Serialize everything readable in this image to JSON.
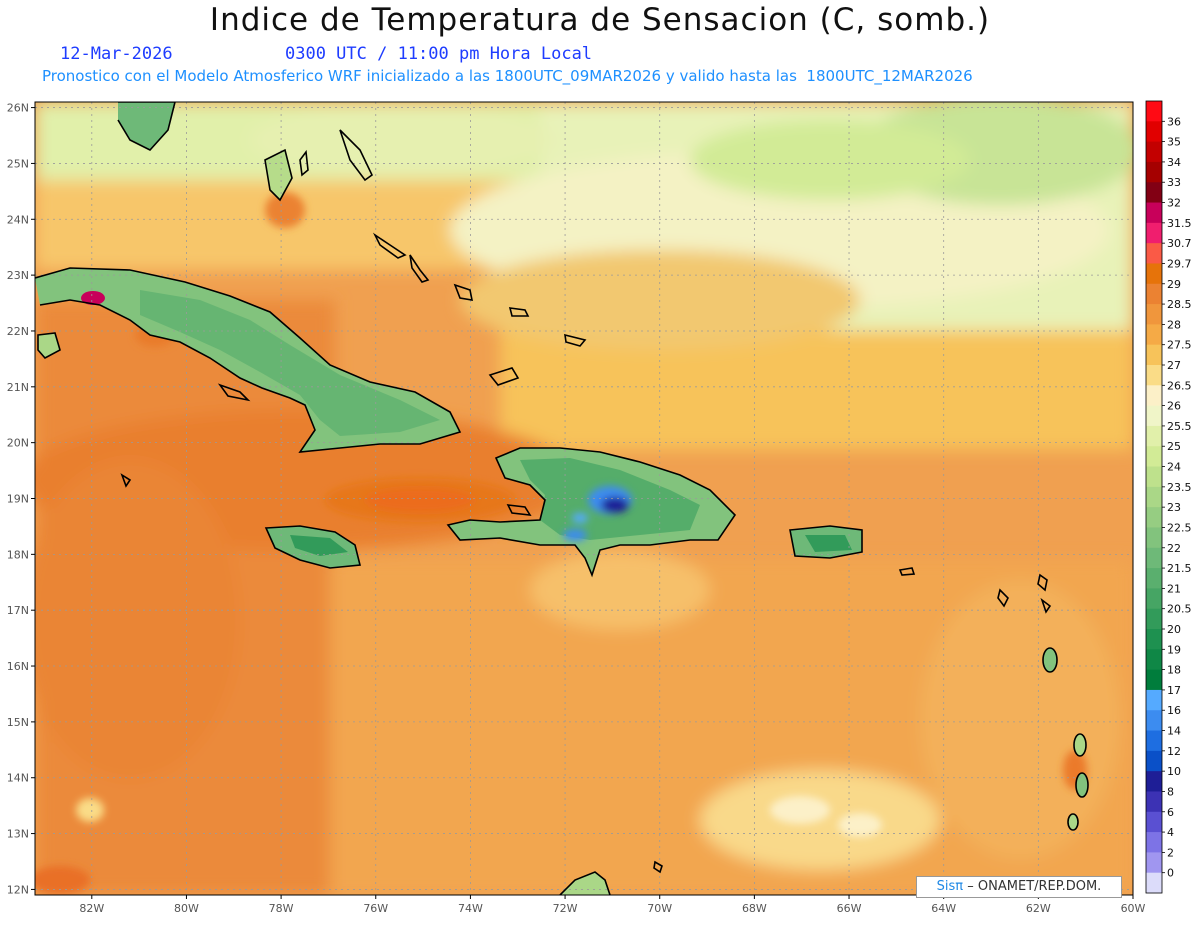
{
  "header": {
    "title": "Indice de Temperatura de Sensacion (C, somb.)",
    "date": "12-Mar-2026",
    "time": "0300 UTC / 11:00 pm Hora Local",
    "description": "Pronostico con el Modelo Atmosferico WRF inicializado a las 1800UTC_09MAR2026 y valido hasta las  1800UTC_12MAR2026"
  },
  "map": {
    "lon_labels": [
      "82W",
      "80W",
      "78W",
      "76W",
      "74W",
      "72W",
      "70W",
      "68W",
      "66W",
      "64W",
      "62W",
      "60W"
    ],
    "lat_labels": [
      "26N",
      "25N",
      "24N",
      "23N",
      "22N",
      "21N",
      "20N",
      "19N",
      "18N",
      "17N",
      "16N",
      "15N",
      "14N",
      "13N",
      "12N"
    ],
    "extent": {
      "lon_min": -83.2,
      "lon_max": -60,
      "lat_min": 11.9,
      "lat_max": 26.1
    }
  },
  "legend": {
    "levels": [
      {
        "label": "36",
        "color": "#ff0a14"
      },
      {
        "label": "35",
        "color": "#e10000"
      },
      {
        "label": "34",
        "color": "#c30000"
      },
      {
        "label": "33",
        "color": "#a50000"
      },
      {
        "label": "32",
        "color": "#820014"
      },
      {
        "label": "31.5",
        "color": "#c8005a"
      },
      {
        "label": "30.7",
        "color": "#f01e6e"
      },
      {
        "label": "29.7",
        "color": "#fa5a46"
      },
      {
        "label": "29",
        "color": "#e6730a"
      },
      {
        "label": "28.5",
        "color": "#eb8232"
      },
      {
        "label": "28",
        "color": "#f0963c"
      },
      {
        "label": "27.5",
        "color": "#f5aa46"
      },
      {
        "label": "27",
        "color": "#f7c35a"
      },
      {
        "label": "26.5",
        "color": "#fadc87"
      },
      {
        "label": "26",
        "color": "#fcf0c8"
      },
      {
        "label": "25.5",
        "color": "#f0f5c8"
      },
      {
        "label": "25",
        "color": "#e1f0aa"
      },
      {
        "label": "24",
        "color": "#d2eb96"
      },
      {
        "label": "23.5",
        "color": "#bee18c"
      },
      {
        "label": "23",
        "color": "#aad787"
      },
      {
        "label": "22.5",
        "color": "#96cd82"
      },
      {
        "label": "22",
        "color": "#82c37d"
      },
      {
        "label": "21.5",
        "color": "#6eb978"
      },
      {
        "label": "21",
        "color": "#5aaf6e"
      },
      {
        "label": "20.5",
        "color": "#46a564"
      },
      {
        "label": "20",
        "color": "#329b5a"
      },
      {
        "label": "19",
        "color": "#1e9150"
      },
      {
        "label": "18",
        "color": "#0f8746"
      },
      {
        "label": "17",
        "color": "#007d3c"
      },
      {
        "label": "16",
        "color": "#55aaff"
      },
      {
        "label": "14",
        "color": "#3c8cf0"
      },
      {
        "label": "12",
        "color": "#1e6ee1"
      },
      {
        "label": "10",
        "color": "#0a50c8"
      },
      {
        "label": "8",
        "color": "#1e1e96"
      },
      {
        "label": "6",
        "color": "#3c32b4"
      },
      {
        "label": "4",
        "color": "#5a50d2"
      },
      {
        "label": "2",
        "color": "#7d73e6"
      },
      {
        "label": "0",
        "color": "#a096f0"
      },
      {
        "label": "",
        "color": "#dcdcfa"
      }
    ]
  },
  "credit": {
    "logo": "Sisπ",
    "text": "– ONAMET/REP.DOM."
  }
}
